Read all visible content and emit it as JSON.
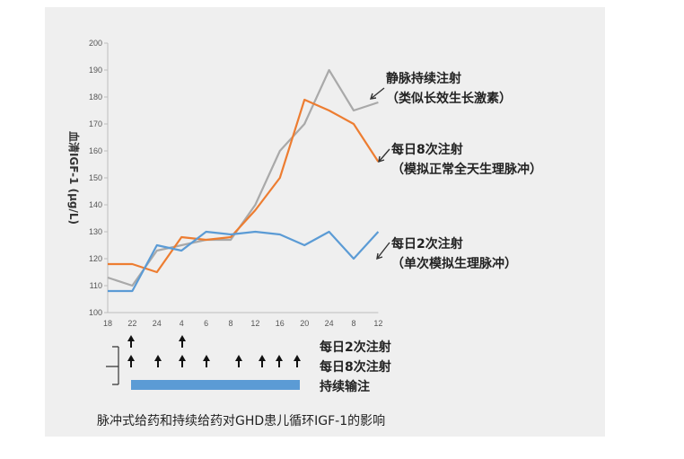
{
  "chart_data": {
    "type": "line",
    "ylabel": "血清IGF-1 (μg/L)",
    "ylim": [
      100,
      200
    ],
    "yticks": [
      100,
      110,
      120,
      130,
      140,
      150,
      160,
      170,
      180,
      190,
      200
    ],
    "categories": [
      "18",
      "22",
      "24",
      "4",
      "6",
      "8",
      "12",
      "16",
      "20",
      "24",
      "8",
      "12"
    ],
    "series": [
      {
        "name": "静脉持续注射",
        "note": "（类似长效生长激素）",
        "color": "#a9a9a9",
        "values": [
          113,
          110,
          123,
          125,
          127,
          127,
          140,
          160,
          170,
          190,
          175,
          178
        ]
      },
      {
        "name": "每日8次注射",
        "note": "（模拟正常全天生理脉冲）",
        "color": "#ed7d31",
        "values": [
          118,
          118,
          115,
          128,
          127,
          128,
          138,
          150,
          179,
          175,
          170,
          156
        ]
      },
      {
        "name": "每日2次注射",
        "note": "（单次模拟生理脉冲）",
        "color": "#5b9bd5",
        "values": [
          108,
          108,
          125,
          123,
          130,
          129,
          130,
          129,
          125,
          130,
          120,
          130
        ]
      }
    ],
    "grid": false
  },
  "schedule": {
    "rows": [
      {
        "label": "每日2次注射",
        "arrows": [
          "22",
          "4"
        ]
      },
      {
        "label": "每日8次注射",
        "arrows": [
          "22",
          "2",
          "4",
          "7",
          "13",
          "16",
          "18",
          "20"
        ]
      },
      {
        "label": "持续输注",
        "bar_color": "#5b9bd5"
      }
    ]
  },
  "caption": "脉冲式给药和持续给药对GHD患儿循环IGF-1的影响"
}
